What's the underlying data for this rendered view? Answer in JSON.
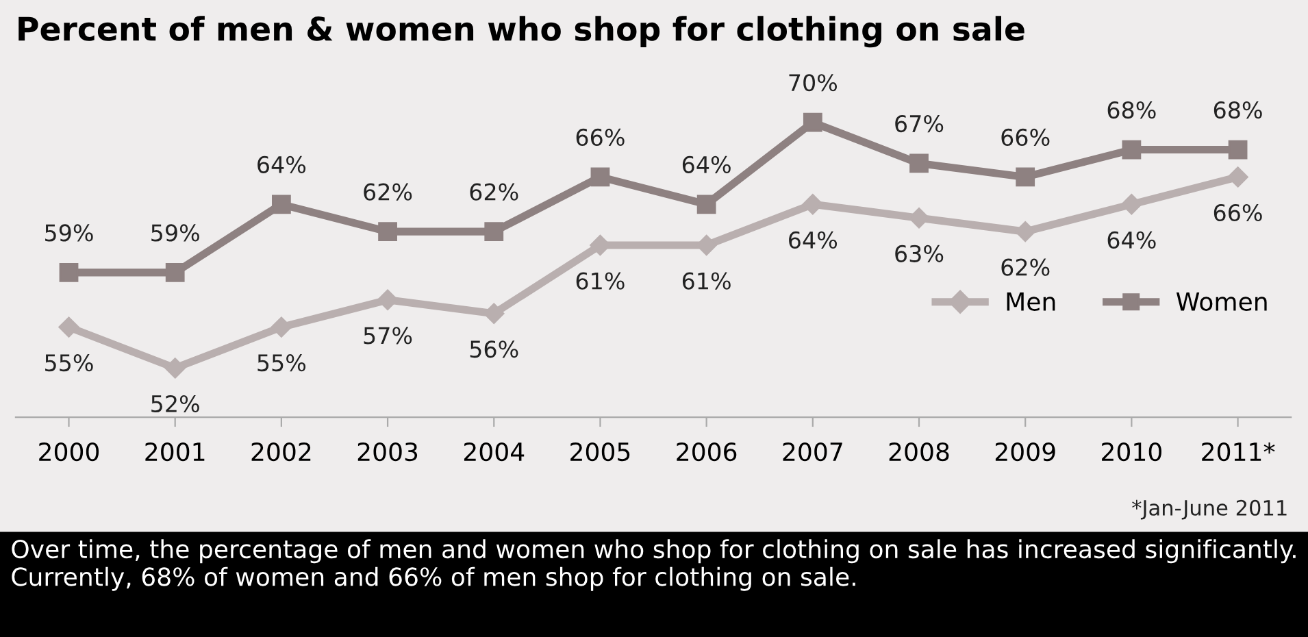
{
  "chart_data": {
    "type": "line",
    "title": "Percent of men & women who shop for clothing on sale",
    "categories": [
      "2000",
      "2001",
      "2002",
      "2003",
      "2004",
      "2005",
      "2006",
      "2007",
      "2008",
      "2009",
      "2010",
      "2011*"
    ],
    "series": [
      {
        "name": "Men",
        "color": "#b9afaf",
        "marker": "diamond",
        "values": [
          55,
          52,
          55,
          57,
          56,
          61,
          61,
          64,
          63,
          62,
          64,
          66
        ],
        "value_labels": [
          "55%",
          "52%",
          "55%",
          "57%",
          "56%",
          "61%",
          "61%",
          "64%",
          "63%",
          "62%",
          "64%",
          "66%"
        ]
      },
      {
        "name": "Women",
        "color": "#8e8181",
        "marker": "square",
        "values": [
          59,
          59,
          64,
          62,
          62,
          66,
          64,
          70,
          67,
          66,
          68,
          68
        ],
        "value_labels": [
          "59%",
          "59%",
          "64%",
          "62%",
          "62%",
          "66%",
          "64%",
          "70%",
          "67%",
          "66%",
          "68%",
          "68%"
        ]
      }
    ],
    "grid": false,
    "legend": "right",
    "tick_labels": "x",
    "annotations": [
      "*Jan-June 2011",
      "Over time, the percentage of men and women who shop for clothing on sale has increased significantly.  Currently, 68% of women and 66% of men shop for clothing on sale."
    ]
  }
}
